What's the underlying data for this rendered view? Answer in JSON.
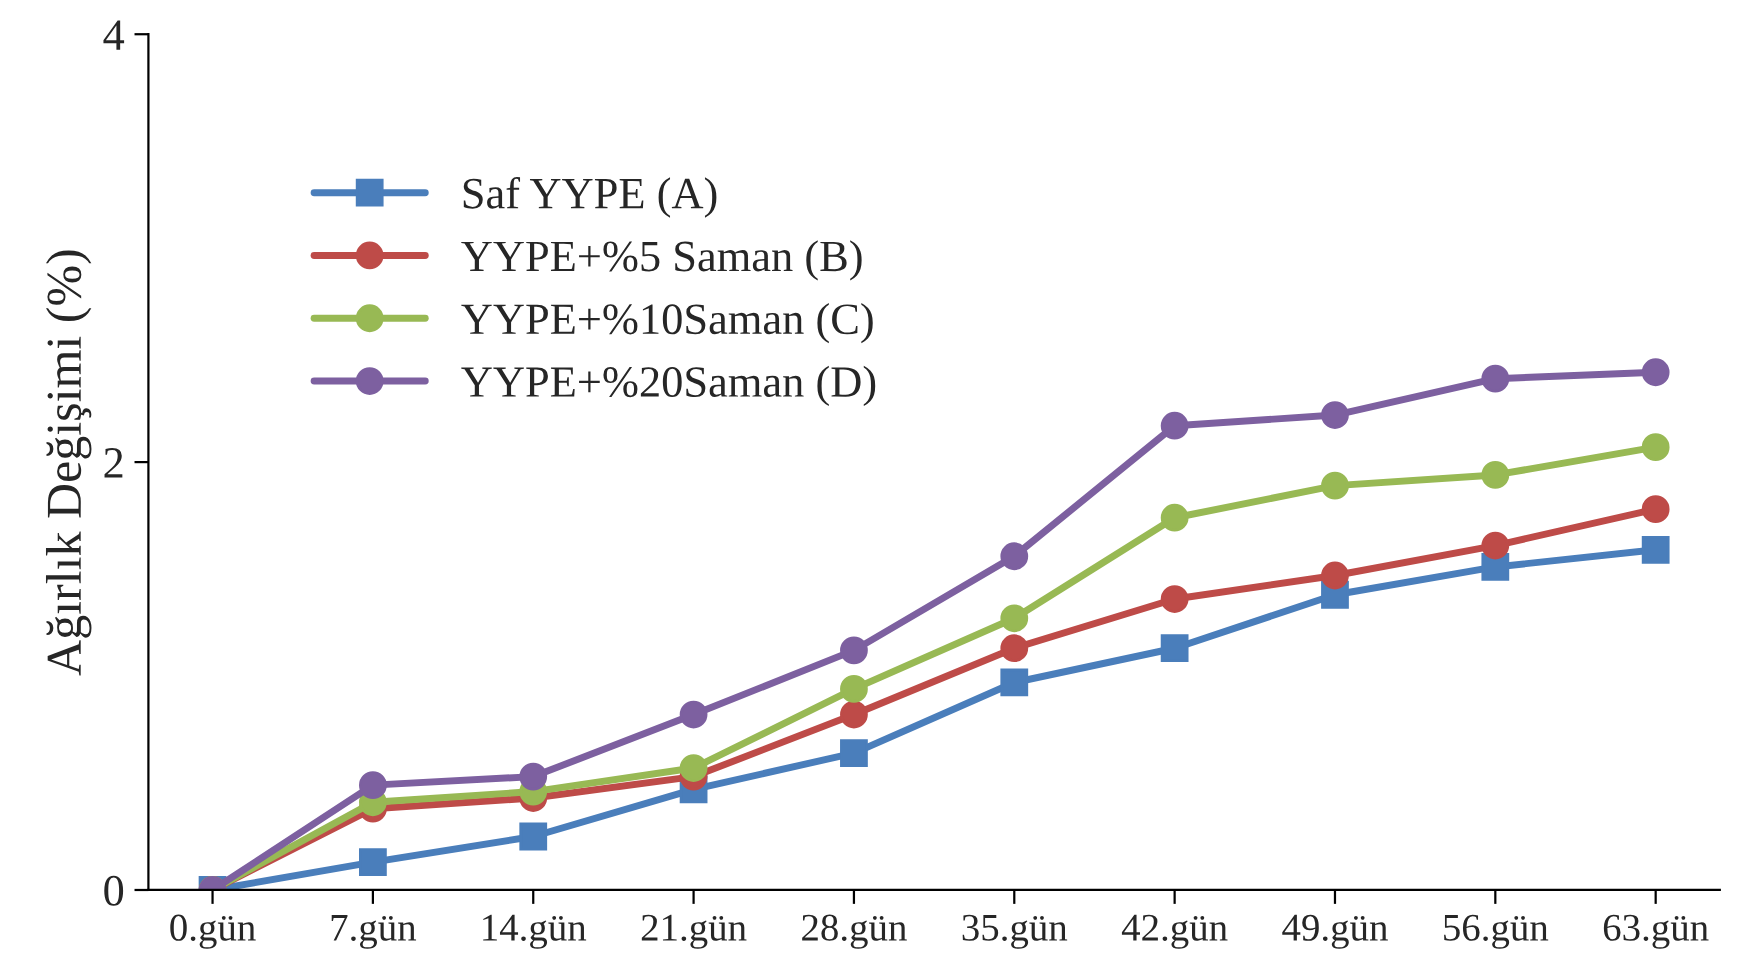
{
  "chart_data": {
    "type": "line",
    "ylabel": "Ağırlık Değişimi (%)",
    "categories": [
      "0.gün",
      "7.gün",
      "14.gün",
      "21.gün",
      "28.gün",
      "35.gün",
      "42.gün",
      "49.gün",
      "56.gün",
      "63.gün"
    ],
    "series": [
      {
        "name": "Saf YYPE (A)",
        "color": "#4a7ebb",
        "marker": "square",
        "values": [
          0,
          0.13,
          0.25,
          0.47,
          0.64,
          0.97,
          1.13,
          1.38,
          1.51,
          1.59
        ]
      },
      {
        "name": "YYPE+%5 Saman (B)",
        "color": "#be4b48",
        "marker": "circle",
        "values": [
          0,
          0.38,
          0.43,
          0.53,
          0.82,
          1.13,
          1.36,
          1.47,
          1.61,
          1.78
        ]
      },
      {
        "name": "YYPE+%10Saman (C)",
        "color": "#98b954",
        "marker": "circle",
        "values": [
          0,
          0.41,
          0.46,
          0.57,
          0.94,
          1.27,
          1.74,
          1.89,
          1.94,
          2.07
        ]
      },
      {
        "name": "YYPE+%20Saman (D)",
        "color": "#7d60a0",
        "marker": "circle",
        "values": [
          0,
          0.49,
          0.53,
          0.82,
          1.12,
          1.56,
          2.17,
          2.22,
          2.39,
          2.42
        ]
      }
    ],
    "ylim": [
      0,
      4
    ],
    "yticks": [
      0,
      2,
      4
    ],
    "grid": false,
    "legend": "top left",
    "line_style": "solid"
  }
}
